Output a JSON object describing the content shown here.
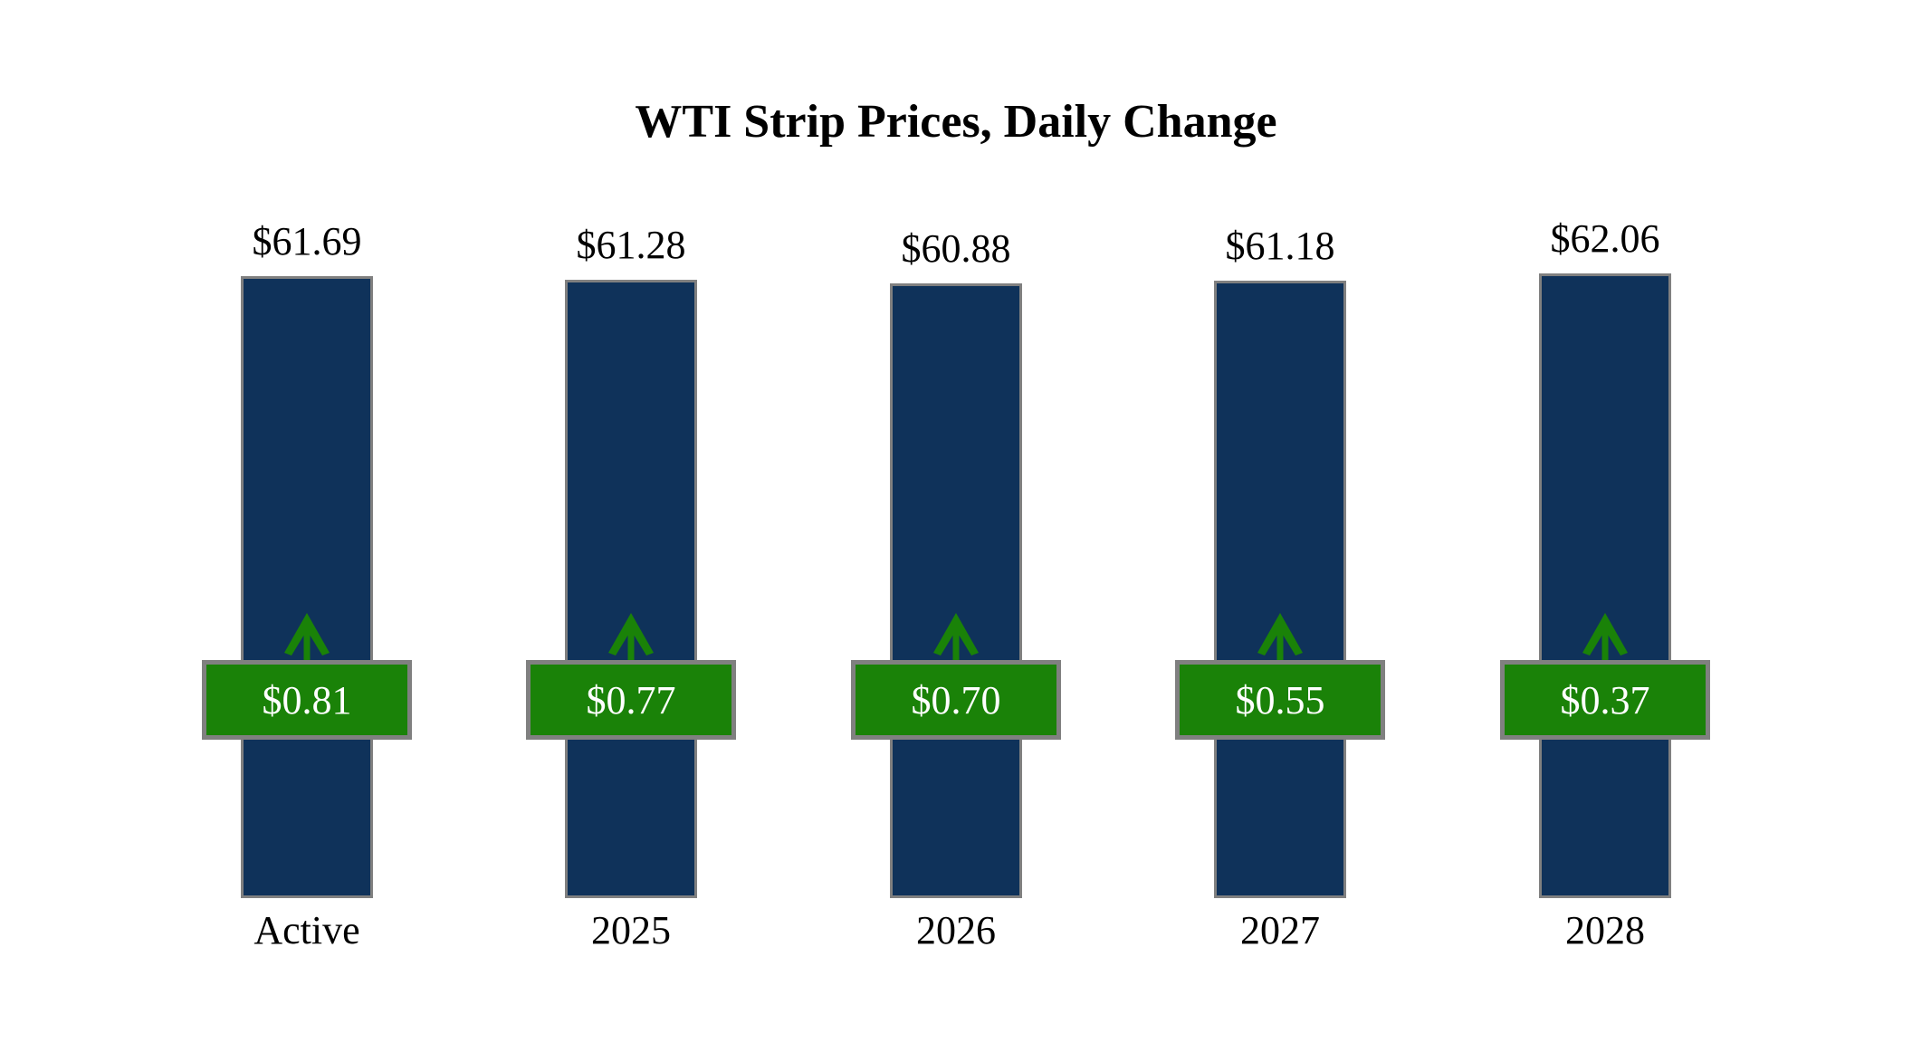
{
  "chart_data": {
    "type": "bar",
    "title": "WTI Strip Prices, Daily Change",
    "categories": [
      "Active",
      "2025",
      "2026",
      "2027",
      "2028"
    ],
    "series": [
      {
        "name": "Strip Price",
        "values": [
          61.69,
          61.28,
          60.88,
          61.18,
          62.06
        ]
      },
      {
        "name": "Daily Change",
        "values": [
          0.81,
          0.77,
          0.7,
          0.55,
          0.37
        ]
      }
    ],
    "bars": [
      {
        "category": "Active",
        "price": 61.69,
        "price_label": "$61.69",
        "change": 0.81,
        "change_label": "$0.81",
        "direction": "up"
      },
      {
        "category": "2025",
        "price": 61.28,
        "price_label": "$61.28",
        "change": 0.77,
        "change_label": "$0.77",
        "direction": "up"
      },
      {
        "category": "2026",
        "price": 60.88,
        "price_label": "$60.88",
        "change": 0.7,
        "change_label": "$0.70",
        "direction": "up"
      },
      {
        "category": "2027",
        "price": 61.18,
        "price_label": "$61.18",
        "change": 0.55,
        "change_label": "$0.55",
        "direction": "up"
      },
      {
        "category": "2028",
        "price": 62.06,
        "price_label": "$62.06",
        "change": 0.37,
        "change_label": "$0.37",
        "direction": "up"
      }
    ],
    "colors": {
      "bar_fill": "#0f325a",
      "change_fill": "#1a8208",
      "border": "#808080",
      "change_text": "#ffffff",
      "label_text": "#000000",
      "background": "#ffffff"
    },
    "layout_hints": {
      "grid": false,
      "legend": false,
      "axes_visible": false,
      "value_labels": "above each bar",
      "change_badges": "green box overlaid on lower-middle of each bar with green up arrow above it"
    }
  }
}
